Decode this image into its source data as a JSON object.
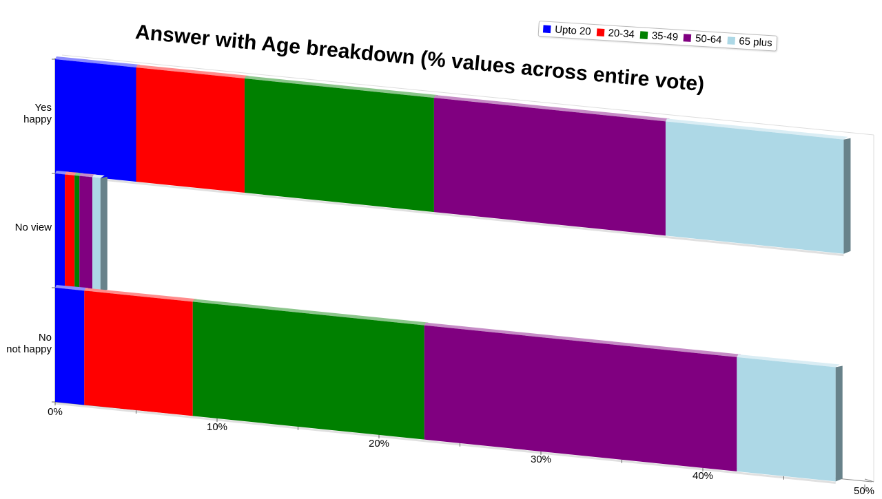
{
  "chart_data": {
    "type": "bar",
    "orientation": "horizontal",
    "stacked": true,
    "title": "Answer with Age breakdown (% values across entire vote)",
    "categories": [
      "Yes\nhappy",
      "No view",
      "No\nnot happy"
    ],
    "series": [
      {
        "name": "Upto 20",
        "color": "#0000ff",
        "values": [
          5.0,
          0.6,
          1.8
        ]
      },
      {
        "name": "20-34",
        "color": "#ff0000",
        "values": [
          6.7,
          0.6,
          6.7
        ]
      },
      {
        "name": "35-49",
        "color": "#008000",
        "values": [
          11.7,
          0.3,
          14.3
        ]
      },
      {
        "name": "50-64",
        "color": "#800080",
        "values": [
          14.3,
          0.8,
          19.3
        ]
      },
      {
        "name": "65 plus",
        "color": "#add8e6",
        "values": [
          11.0,
          0.5,
          6.1
        ]
      }
    ],
    "x_ticks": [
      "0%",
      "10%",
      "20%",
      "30%",
      "40%",
      "50%"
    ],
    "xlim": [
      0,
      50
    ],
    "legend_position": "top-right",
    "grid": false
  }
}
